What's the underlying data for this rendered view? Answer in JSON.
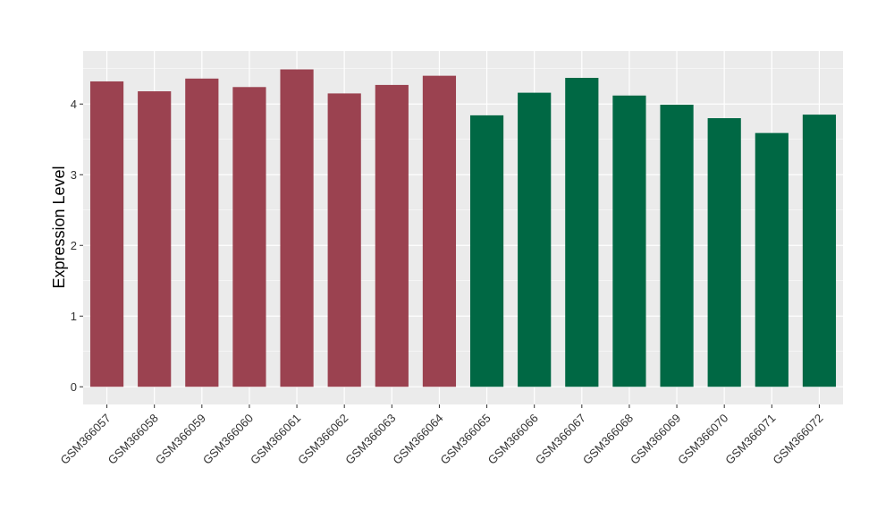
{
  "chart_data": {
    "type": "bar",
    "title": "",
    "xlabel": "",
    "ylabel": "Expression Level",
    "ylim": [
      -0.25,
      4.75
    ],
    "yticks": [
      0,
      1,
      2,
      3,
      4
    ],
    "grid": true,
    "legend": "none",
    "categories": [
      "GSM366057",
      "GSM366058",
      "GSM366059",
      "GSM366060",
      "GSM366061",
      "GSM366062",
      "GSM366063",
      "GSM366064",
      "GSM366065",
      "GSM366066",
      "GSM366067",
      "GSM366068",
      "GSM366069",
      "GSM366070",
      "GSM366071",
      "GSM366072"
    ],
    "values": [
      4.32,
      4.18,
      4.36,
      4.24,
      4.49,
      4.15,
      4.27,
      4.4,
      3.84,
      4.16,
      4.37,
      4.12,
      3.99,
      3.8,
      3.59,
      3.85
    ],
    "group_colors": [
      "#9b4250",
      "#9b4250",
      "#9b4250",
      "#9b4250",
      "#9b4250",
      "#9b4250",
      "#9b4250",
      "#9b4250",
      "#006844",
      "#006844",
      "#006844",
      "#006844",
      "#006844",
      "#006844",
      "#006844",
      "#006844"
    ],
    "panel_background": "#ebebeb",
    "grid_color": "#ffffff"
  }
}
